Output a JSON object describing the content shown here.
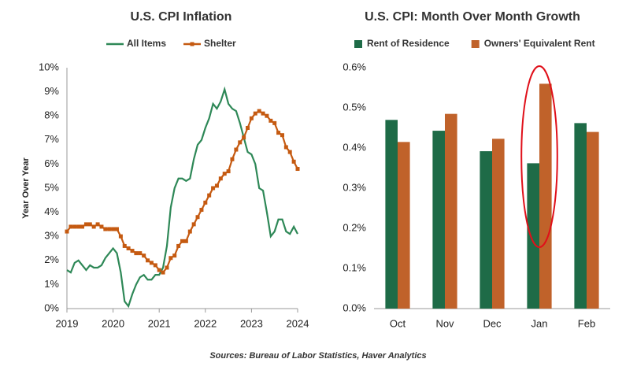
{
  "chart_data": [
    {
      "type": "line",
      "title": "U.S. CPI Inflation",
      "y_label": "Year Over Year",
      "x": [
        2019,
        2019.083,
        2019.167,
        2019.25,
        2019.333,
        2019.417,
        2019.5,
        2019.583,
        2019.667,
        2019.75,
        2019.833,
        2019.917,
        2020,
        2020.083,
        2020.167,
        2020.25,
        2020.333,
        2020.417,
        2020.5,
        2020.583,
        2020.667,
        2020.75,
        2020.833,
        2020.917,
        2021,
        2021.083,
        2021.167,
        2021.25,
        2021.333,
        2021.417,
        2021.5,
        2021.583,
        2021.667,
        2021.75,
        2021.833,
        2021.917,
        2022,
        2022.083,
        2022.167,
        2022.25,
        2022.333,
        2022.417,
        2022.5,
        2022.583,
        2022.667,
        2022.75,
        2022.833,
        2022.917,
        2023,
        2023.083,
        2023.167,
        2023.25,
        2023.333,
        2023.417,
        2023.5,
        2023.583,
        2023.667,
        2023.75,
        2023.833,
        2023.917,
        2024
      ],
      "series": [
        {
          "name": "All Items",
          "color": "#2e8857",
          "marker": false,
          "values": [
            1.6,
            1.5,
            1.9,
            2.0,
            1.8,
            1.6,
            1.8,
            1.7,
            1.7,
            1.8,
            2.1,
            2.3,
            2.5,
            2.3,
            1.5,
            0.3,
            0.1,
            0.6,
            1.0,
            1.3,
            1.4,
            1.2,
            1.2,
            1.4,
            1.4,
            1.7,
            2.6,
            4.2,
            5.0,
            5.4,
            5.4,
            5.3,
            5.4,
            6.2,
            6.8,
            7.0,
            7.5,
            7.9,
            8.5,
            8.3,
            8.6,
            9.1,
            8.5,
            8.3,
            8.2,
            7.7,
            7.1,
            6.5,
            6.4,
            6.0,
            5.0,
            4.9,
            4.0,
            3.0,
            3.2,
            3.7,
            3.7,
            3.2,
            3.1,
            3.4,
            3.1
          ]
        },
        {
          "name": "Shelter",
          "color": "#c55a11",
          "marker": true,
          "values": [
            3.2,
            3.4,
            3.4,
            3.4,
            3.4,
            3.5,
            3.5,
            3.4,
            3.5,
            3.4,
            3.3,
            3.3,
            3.3,
            3.3,
            3.0,
            2.6,
            2.5,
            2.4,
            2.3,
            2.3,
            2.2,
            2.0,
            1.9,
            1.8,
            1.6,
            1.5,
            1.7,
            2.1,
            2.2,
            2.6,
            2.8,
            2.8,
            3.2,
            3.5,
            3.8,
            4.1,
            4.4,
            4.7,
            5.0,
            5.1,
            5.4,
            5.6,
            5.7,
            6.2,
            6.6,
            6.9,
            7.1,
            7.5,
            7.9,
            8.1,
            8.2,
            8.1,
            8.0,
            7.8,
            7.7,
            7.3,
            7.2,
            6.7,
            6.5,
            6.1,
            5.8
          ]
        }
      ],
      "xlim": [
        2019,
        2024
      ],
      "xticks": [
        2019,
        2020,
        2021,
        2022,
        2023,
        2024
      ],
      "ylim": [
        0,
        10
      ],
      "yticks": [
        {
          "value": 0,
          "label": "0%"
        },
        {
          "value": 1,
          "label": "1%"
        },
        {
          "value": 2,
          "label": "2%"
        },
        {
          "value": 3,
          "label": "3%"
        },
        {
          "value": 4,
          "label": "4%"
        },
        {
          "value": 5,
          "label": "5%"
        },
        {
          "value": 6,
          "label": "6%"
        },
        {
          "value": 7,
          "label": "7%"
        },
        {
          "value": 8,
          "label": "8%"
        },
        {
          "value": 9,
          "label": "9%"
        },
        {
          "value": 10,
          "label": "10%"
        }
      ],
      "legend": "top",
      "grid": false
    },
    {
      "type": "bar",
      "title": "U.S. CPI: Month Over Month  Growth",
      "categories": [
        "Oct",
        "Nov",
        "Dec",
        "Jan",
        "Feb"
      ],
      "series": [
        {
          "name": "Rent of Residence",
          "color": "#1e6b47",
          "values": [
            0.47,
            0.443,
            0.392,
            0.362,
            0.462
          ]
        },
        {
          "name": "Owners' Equivalent Rent",
          "color": "#c0622a",
          "values": [
            0.415,
            0.485,
            0.423,
            0.56,
            0.44
          ]
        }
      ],
      "ylim": [
        0,
        0.6
      ],
      "yticks": [
        {
          "value": 0,
          "label": "0.0%"
        },
        {
          "value": 0.1,
          "label": "0.1%"
        },
        {
          "value": 0.2,
          "label": "0.2%"
        },
        {
          "value": 0.3,
          "label": "0.3%"
        },
        {
          "value": 0.4,
          "label": "0.4%"
        },
        {
          "value": 0.5,
          "label": "0.5%"
        },
        {
          "value": 0.6,
          "label": "0.6%"
        }
      ],
      "highlight": "Jan",
      "highlight_color": "#e0101a",
      "legend": "top",
      "grid": false
    }
  ],
  "source": "Sources: Bureau of Labor Statistics, Haver Analytics"
}
